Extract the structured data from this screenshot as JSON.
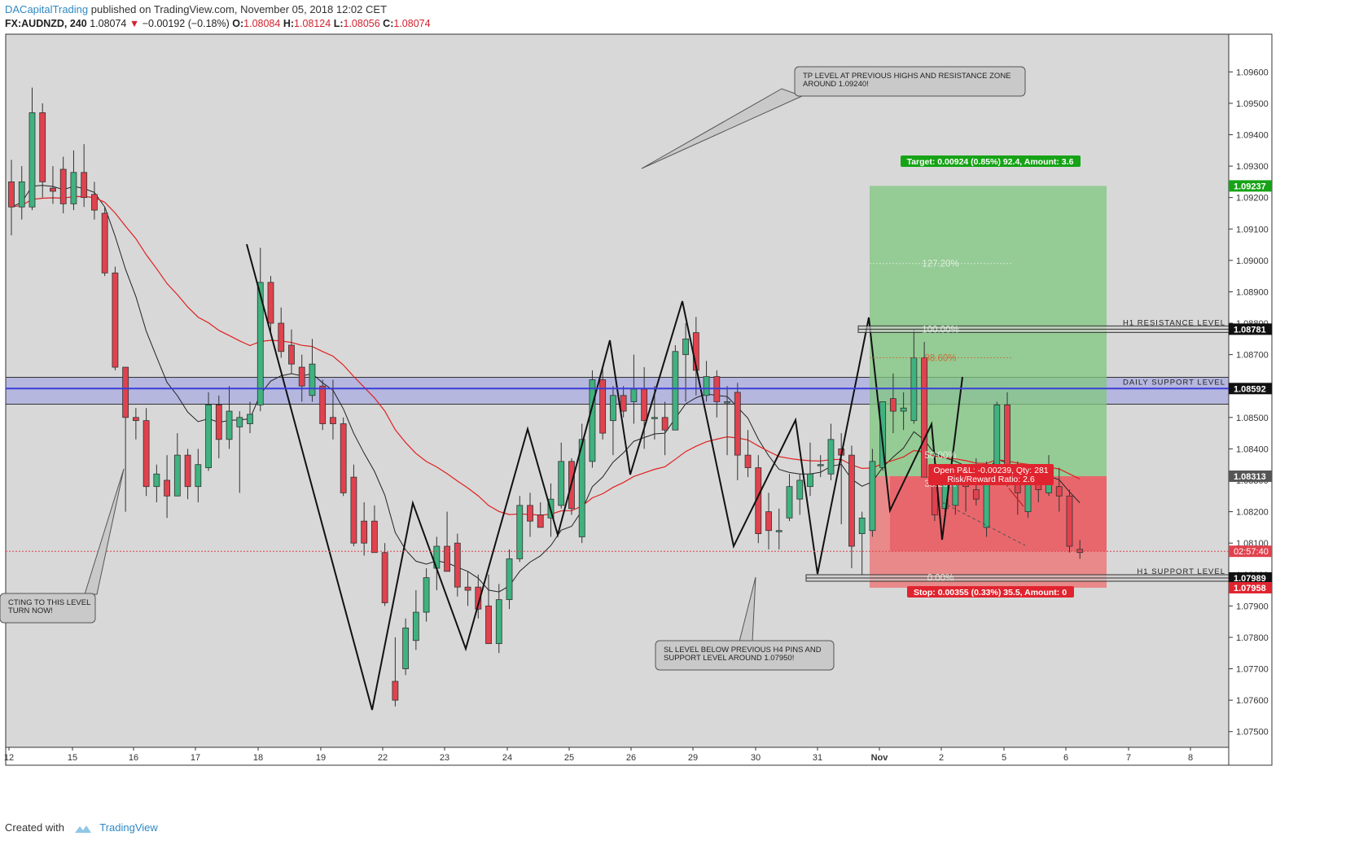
{
  "header": {
    "author": "DACapitalTrading",
    "published": "published on TradingView.com, November 05, 2018 12:02 CET",
    "symbol": "FX:AUDNZD, 240",
    "last": "1.08074",
    "change": "−0.00192 (−0.18%)",
    "o_label": "O:",
    "o": "1.08084",
    "h_label": "H:",
    "h": "1.08124",
    "l_label": "L:",
    "l": "1.08056",
    "c_label": "C:",
    "c": "1.08074"
  },
  "footer": {
    "created": "Created with",
    "brand": "TradingView"
  },
  "colors": {
    "up": "#3fb27f",
    "down": "#e0424e",
    "ema_slow": "#e02020",
    "ema_fast": "#222222",
    "daily_band": "#3b3fd6",
    "target_zone": "#7fc77f",
    "stop_zone": "#ef6f6f",
    "plot_bg": "#d8d8d8"
  },
  "chart_data": {
    "type": "candlestick",
    "ylim": [
      1.0745,
      1.0972
    ],
    "y_ticks": [
      "1.07500",
      "1.07600",
      "1.07700",
      "1.07800",
      "1.07900",
      "1.08000",
      "1.08100",
      "1.08200",
      "1.08300",
      "1.08400",
      "1.08500",
      "1.08600",
      "1.08700",
      "1.08800",
      "1.08900",
      "1.09000",
      "1.09100",
      "1.09200",
      "1.09300",
      "1.09400",
      "1.09500",
      "1.09600"
    ],
    "x_ticks": [
      "12",
      "15",
      "16",
      "17",
      "18",
      "19",
      "22",
      "23",
      "24",
      "25",
      "26",
      "29",
      "30",
      "31",
      "Nov",
      "2",
      "5",
      "6",
      "7",
      "8"
    ],
    "candles": [
      {
        "o": 1.0925,
        "h": 1.0932,
        "l": 1.0908,
        "c": 1.0917
      },
      {
        "o": 1.0917,
        "h": 1.093,
        "l": 1.0913,
        "c": 1.0925
      },
      {
        "o": 1.0917,
        "h": 1.0955,
        "l": 1.0916,
        "c": 1.0947
      },
      {
        "o": 1.0947,
        "h": 1.095,
        "l": 1.092,
        "c": 1.0925
      },
      {
        "o": 1.0923,
        "h": 1.093,
        "l": 1.0918,
        "c": 1.0922
      },
      {
        "o": 1.0929,
        "h": 1.0933,
        "l": 1.0915,
        "c": 1.0918
      },
      {
        "o": 1.0918,
        "h": 1.0935,
        "l": 1.0916,
        "c": 1.0928
      },
      {
        "o": 1.0928,
        "h": 1.0937,
        "l": 1.0917,
        "c": 1.092
      },
      {
        "o": 1.0921,
        "h": 1.0925,
        "l": 1.0913,
        "c": 1.0916
      },
      {
        "o": 1.0915,
        "h": 1.0917,
        "l": 1.0895,
        "c": 1.0896
      },
      {
        "o": 1.0896,
        "h": 1.0898,
        "l": 1.0865,
        "c": 1.0866
      },
      {
        "o": 1.0866,
        "h": 1.0866,
        "l": 1.082,
        "c": 1.085
      },
      {
        "o": 1.085,
        "h": 1.0853,
        "l": 1.0843,
        "c": 1.0849
      },
      {
        "o": 1.0849,
        "h": 1.0853,
        "l": 1.0825,
        "c": 1.0828
      },
      {
        "o": 1.0828,
        "h": 1.0835,
        "l": 1.0823,
        "c": 1.0832
      },
      {
        "o": 1.083,
        "h": 1.0838,
        "l": 1.0818,
        "c": 1.0825
      },
      {
        "o": 1.0825,
        "h": 1.0845,
        "l": 1.0825,
        "c": 1.0838
      },
      {
        "o": 1.0838,
        "h": 1.084,
        "l": 1.0824,
        "c": 1.0828
      },
      {
        "o": 1.0828,
        "h": 1.084,
        "l": 1.0823,
        "c": 1.0835
      },
      {
        "o": 1.0834,
        "h": 1.0858,
        "l": 1.0833,
        "c": 1.0854
      },
      {
        "o": 1.0854,
        "h": 1.0857,
        "l": 1.0837,
        "c": 1.0843
      },
      {
        "o": 1.0843,
        "h": 1.086,
        "l": 1.084,
        "c": 1.0852
      },
      {
        "o": 1.0847,
        "h": 1.0852,
        "l": 1.0826,
        "c": 1.085
      },
      {
        "o": 1.0848,
        "h": 1.0855,
        "l": 1.0845,
        "c": 1.0851
      },
      {
        "o": 1.0854,
        "h": 1.0904,
        "l": 1.0852,
        "c": 1.0893
      },
      {
        "o": 1.0893,
        "h": 1.0895,
        "l": 1.0877,
        "c": 1.088
      },
      {
        "o": 1.088,
        "h": 1.0885,
        "l": 1.0869,
        "c": 1.0871
      },
      {
        "o": 1.0873,
        "h": 1.0878,
        "l": 1.0864,
        "c": 1.0867
      },
      {
        "o": 1.0866,
        "h": 1.087,
        "l": 1.0855,
        "c": 1.086
      },
      {
        "o": 1.0857,
        "h": 1.0875,
        "l": 1.0855,
        "c": 1.0867
      },
      {
        "o": 1.086,
        "h": 1.0862,
        "l": 1.0846,
        "c": 1.0848
      },
      {
        "o": 1.085,
        "h": 1.0862,
        "l": 1.0843,
        "c": 1.0848
      },
      {
        "o": 1.0848,
        "h": 1.085,
        "l": 1.0825,
        "c": 1.0826
      },
      {
        "o": 1.0831,
        "h": 1.0835,
        "l": 1.0809,
        "c": 1.081
      },
      {
        "o": 1.0817,
        "h": 1.0823,
        "l": 1.0806,
        "c": 1.081
      },
      {
        "o": 1.0817,
        "h": 1.0822,
        "l": 1.0807,
        "c": 1.0807
      },
      {
        "o": 1.0807,
        "h": 1.081,
        "l": 1.079,
        "c": 1.0791
      },
      {
        "o": 1.0766,
        "h": 1.078,
        "l": 1.0758,
        "c": 1.076
      },
      {
        "o": 1.077,
        "h": 1.0786,
        "l": 1.0768,
        "c": 1.0783
      },
      {
        "o": 1.0779,
        "h": 1.0795,
        "l": 1.0776,
        "c": 1.0788
      },
      {
        "o": 1.0788,
        "h": 1.0802,
        "l": 1.0785,
        "c": 1.0799
      },
      {
        "o": 1.0802,
        "h": 1.0812,
        "l": 1.0795,
        "c": 1.0809
      },
      {
        "o": 1.0809,
        "h": 1.082,
        "l": 1.0803,
        "c": 1.0801
      },
      {
        "o": 1.081,
        "h": 1.0813,
        "l": 1.0793,
        "c": 1.0796
      },
      {
        "o": 1.0796,
        "h": 1.0801,
        "l": 1.079,
        "c": 1.0795
      },
      {
        "o": 1.0796,
        "h": 1.08,
        "l": 1.0786,
        "c": 1.0789
      },
      {
        "o": 1.079,
        "h": 1.08,
        "l": 1.0778,
        "c": 1.0778
      },
      {
        "o": 1.0778,
        "h": 1.0797,
        "l": 1.0775,
        "c": 1.0792
      },
      {
        "o": 1.0792,
        "h": 1.0808,
        "l": 1.0789,
        "c": 1.0805
      },
      {
        "o": 1.0805,
        "h": 1.0825,
        "l": 1.0804,
        "c": 1.0822
      },
      {
        "o": 1.0822,
        "h": 1.0826,
        "l": 1.0812,
        "c": 1.0817
      },
      {
        "o": 1.0819,
        "h": 1.0823,
        "l": 1.0815,
        "c": 1.0815
      },
      {
        "o": 1.0818,
        "h": 1.0829,
        "l": 1.0812,
        "c": 1.0824
      },
      {
        "o": 1.0822,
        "h": 1.0842,
        "l": 1.0821,
        "c": 1.0836
      },
      {
        "o": 1.0836,
        "h": 1.0837,
        "l": 1.0819,
        "c": 1.0821
      },
      {
        "o": 1.0812,
        "h": 1.0848,
        "l": 1.081,
        "c": 1.0843
      },
      {
        "o": 1.0836,
        "h": 1.0865,
        "l": 1.0834,
        "c": 1.0862
      },
      {
        "o": 1.0862,
        "h": 1.0866,
        "l": 1.0843,
        "c": 1.0845
      },
      {
        "o": 1.0849,
        "h": 1.086,
        "l": 1.0838,
        "c": 1.0857
      },
      {
        "o": 1.0857,
        "h": 1.086,
        "l": 1.085,
        "c": 1.0852
      },
      {
        "o": 1.0855,
        "h": 1.087,
        "l": 1.0848,
        "c": 1.0859
      },
      {
        "o": 1.0859,
        "h": 1.0866,
        "l": 1.084,
        "c": 1.0849
      },
      {
        "o": 1.085,
        "h": 1.086,
        "l": 1.0843,
        "c": 1.085
      },
      {
        "o": 1.085,
        "h": 1.0855,
        "l": 1.0838,
        "c": 1.0846
      },
      {
        "o": 1.0846,
        "h": 1.0873,
        "l": 1.0846,
        "c": 1.0871
      },
      {
        "o": 1.087,
        "h": 1.088,
        "l": 1.0855,
        "c": 1.0875
      },
      {
        "o": 1.0877,
        "h": 1.0882,
        "l": 1.0857,
        "c": 1.0865
      },
      {
        "o": 1.0857,
        "h": 1.0868,
        "l": 1.0855,
        "c": 1.0863
      },
      {
        "o": 1.0863,
        "h": 1.0865,
        "l": 1.085,
        "c": 1.0855
      },
      {
        "o": 1.0855,
        "h": 1.086,
        "l": 1.0838,
        "c": 1.0855
      },
      {
        "o": 1.0858,
        "h": 1.0861,
        "l": 1.083,
        "c": 1.0838
      },
      {
        "o": 1.0838,
        "h": 1.0846,
        "l": 1.0831,
        "c": 1.0834
      },
      {
        "o": 1.0834,
        "h": 1.0838,
        "l": 1.081,
        "c": 1.0813
      },
      {
        "o": 1.082,
        "h": 1.0826,
        "l": 1.0808,
        "c": 1.0814
      },
      {
        "o": 1.0814,
        "h": 1.0821,
        "l": 1.0808,
        "c": 1.0814
      },
      {
        "o": 1.0818,
        "h": 1.0832,
        "l": 1.0817,
        "c": 1.0828
      },
      {
        "o": 1.0824,
        "h": 1.0832,
        "l": 1.0819,
        "c": 1.083
      },
      {
        "o": 1.0828,
        "h": 1.0842,
        "l": 1.0825,
        "c": 1.0832
      },
      {
        "o": 1.0835,
        "h": 1.0838,
        "l": 1.0831,
        "c": 1.0835
      },
      {
        "o": 1.0832,
        "h": 1.0848,
        "l": 1.083,
        "c": 1.0843
      },
      {
        "o": 1.084,
        "h": 1.0845,
        "l": 1.0816,
        "c": 1.0838
      },
      {
        "o": 1.0838,
        "h": 1.0841,
        "l": 1.0802,
        "c": 1.0809
      },
      {
        "o": 1.0813,
        "h": 1.082,
        "l": 1.08,
        "c": 1.0818
      },
      {
        "o": 1.0814,
        "h": 1.084,
        "l": 1.0812,
        "c": 1.0836
      },
      {
        "o": 1.0834,
        "h": 1.0855,
        "l": 1.0833,
        "c": 1.0855
      },
      {
        "o": 1.0856,
        "h": 1.0864,
        "l": 1.0845,
        "c": 1.0852
      },
      {
        "o": 1.0852,
        "h": 1.0858,
        "l": 1.0846,
        "c": 1.0853
      },
      {
        "o": 1.0849,
        "h": 1.0878,
        "l": 1.0848,
        "c": 1.0869
      },
      {
        "o": 1.0869,
        "h": 1.0874,
        "l": 1.0831,
        "c": 1.0831
      },
      {
        "o": 1.0832,
        "h": 1.0836,
        "l": 1.0817,
        "c": 1.0819
      },
      {
        "o": 1.0821,
        "h": 1.0834,
        "l": 1.0818,
        "c": 1.0831
      },
      {
        "o": 1.0822,
        "h": 1.0834,
        "l": 1.0819,
        "c": 1.0831
      },
      {
        "o": 1.083,
        "h": 1.0835,
        "l": 1.082,
        "c": 1.0828
      },
      {
        "o": 1.0827,
        "h": 1.0837,
        "l": 1.0822,
        "c": 1.0824
      },
      {
        "o": 1.0815,
        "h": 1.0836,
        "l": 1.0812,
        "c": 1.0834
      },
      {
        "o": 1.0832,
        "h": 1.0855,
        "l": 1.083,
        "c": 1.0854
      },
      {
        "o": 1.0854,
        "h": 1.0858,
        "l": 1.0828,
        "c": 1.083
      },
      {
        "o": 1.083,
        "h": 1.0836,
        "l": 1.0819,
        "c": 1.0826
      },
      {
        "o": 1.082,
        "h": 1.0833,
        "l": 1.0818,
        "c": 1.0829
      },
      {
        "o": 1.0829,
        "h": 1.0833,
        "l": 1.0823,
        "c": 1.0827
      },
      {
        "o": 1.0826,
        "h": 1.0838,
        "l": 1.0825,
        "c": 1.0829
      },
      {
        "o": 1.0828,
        "h": 1.0834,
        "l": 1.082,
        "c": 1.0825
      },
      {
        "o": 1.0825,
        "h": 1.0827,
        "l": 1.0807,
        "c": 1.0809
      },
      {
        "o": 1.0808,
        "h": 1.0811,
        "l": 1.0805,
        "c": 1.0807
      }
    ],
    "levels": [
      {
        "name": "H1 RESISTANCE LEVEL",
        "price": 1.08781,
        "label": "1.08781"
      },
      {
        "name": "DAILY SUPPORT LEVEL",
        "price": 1.08592,
        "label": "1.08592"
      },
      {
        "name": "H1 SUPPORT LEVEL",
        "price": 1.07989,
        "label": "1.07989"
      }
    ],
    "daily_zone": [
      1.0855,
      1.0862
    ],
    "position": {
      "entry": 1.08313,
      "entry_label": "1.08313",
      "target": 1.09237,
      "target_label": "1.09237",
      "stop": 1.07958,
      "stop_label": "1.07958",
      "target_text": "Target: 0.00924 (0.85%) 92.4, Amount: 3.6",
      "stop_text": "Stop: 0.00355 (0.33%) 35.5, Amount: 0",
      "pnl_text": "Open P&L: -0.00239, Qty: 281",
      "rr_text": "Risk/Reward Ratio: 2.6"
    },
    "current_price": 1.08074,
    "countdown": "02:57:40",
    "fib": [
      {
        "label": "127.20%",
        "price": 1.0899
      },
      {
        "label": "100.00%",
        "price": 1.0878
      },
      {
        "label": "88.60%",
        "price": 1.0869
      },
      {
        "label": "50.00%",
        "price": 1.0838
      },
      {
        "label": "38.20%",
        "price": 1.0829
      },
      {
        "label": "0.00%",
        "price": 1.0799
      }
    ],
    "annotations": [
      {
        "name": "tp-note",
        "text": "TP LEVEL AT PREVIOUS HIGHS AND RESISTANCE ZONE\nAROUND 1.09240!"
      },
      {
        "name": "sl-note",
        "text": "SL LEVEL BELOW PREVIOUS H4 PINS AND\nSUPPORT LEVEL AROUND 1.07950!"
      },
      {
        "name": "reacting-note",
        "text": "CTING TO THIS LEVEL\nTURN NOW!"
      }
    ]
  }
}
